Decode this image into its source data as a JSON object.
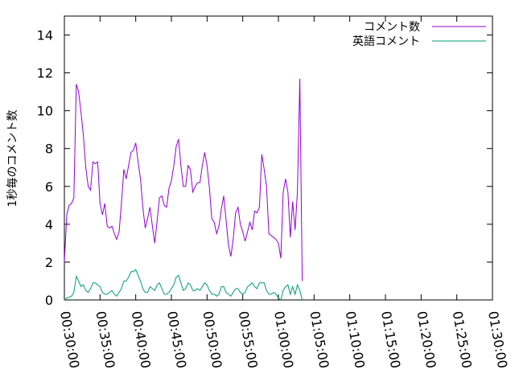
{
  "chart_data": {
    "type": "line",
    "title": "",
    "xlabel": "",
    "ylabel": "1秒毎のコメント数",
    "xlim": [
      1800,
      5400
    ],
    "ylim": [
      0,
      15
    ],
    "xticks": [
      {
        "value": 1800,
        "label": "00:30:00"
      },
      {
        "value": 2100,
        "label": "00:35:00"
      },
      {
        "value": 2400,
        "label": "00:40:00"
      },
      {
        "value": 2700,
        "label": "00:45:00"
      },
      {
        "value": 3000,
        "label": "00:50:00"
      },
      {
        "value": 3300,
        "label": "00:55:00"
      },
      {
        "value": 3600,
        "label": "01:00:00"
      },
      {
        "value": 3900,
        "label": "01:05:00"
      },
      {
        "value": 4200,
        "label": "01:10:00"
      },
      {
        "value": 4500,
        "label": "01:15:00"
      },
      {
        "value": 4800,
        "label": "01:20:00"
      },
      {
        "value": 5100,
        "label": "01:25:00"
      },
      {
        "value": 5400,
        "label": "01:30:00"
      }
    ],
    "yticks": [
      {
        "value": 0,
        "label": "0"
      },
      {
        "value": 2,
        "label": "2"
      },
      {
        "value": 4,
        "label": "4"
      },
      {
        "value": 6,
        "label": "6"
      },
      {
        "value": 8,
        "label": "8"
      },
      {
        "value": 10,
        "label": "10"
      },
      {
        "value": 12,
        "label": "12"
      },
      {
        "value": 14,
        "label": "14"
      }
    ],
    "grid": false,
    "legend_position": "top-right",
    "series": [
      {
        "name": "コメント数",
        "color": "#9400d3",
        "points": [
          [
            1800,
            2.0
          ],
          [
            1820,
            4.5
          ],
          [
            1840,
            5.0
          ],
          [
            1860,
            5.1
          ],
          [
            1880,
            5.4
          ],
          [
            1900,
            11.4
          ],
          [
            1920,
            11.0
          ],
          [
            1940,
            9.9
          ],
          [
            1960,
            8.7
          ],
          [
            1980,
            7.0
          ],
          [
            2000,
            6.0
          ],
          [
            2020,
            5.8
          ],
          [
            2040,
            7.3
          ],
          [
            2060,
            7.2
          ],
          [
            2080,
            7.3
          ],
          [
            2100,
            5.1
          ],
          [
            2120,
            4.5
          ],
          [
            2140,
            5.1
          ],
          [
            2160,
            3.9
          ],
          [
            2180,
            3.8
          ],
          [
            2200,
            3.9
          ],
          [
            2220,
            3.5
          ],
          [
            2240,
            3.2
          ],
          [
            2260,
            3.6
          ],
          [
            2280,
            5.1
          ],
          [
            2300,
            6.9
          ],
          [
            2320,
            6.4
          ],
          [
            2340,
            7.1
          ],
          [
            2360,
            7.8
          ],
          [
            2380,
            7.9
          ],
          [
            2400,
            8.3
          ],
          [
            2420,
            7.3
          ],
          [
            2440,
            6.4
          ],
          [
            2460,
            4.9
          ],
          [
            2480,
            3.8
          ],
          [
            2500,
            4.3
          ],
          [
            2520,
            4.9
          ],
          [
            2540,
            3.9
          ],
          [
            2560,
            3.0
          ],
          [
            2580,
            4.2
          ],
          [
            2600,
            5.4
          ],
          [
            2620,
            5.5
          ],
          [
            2640,
            5.0
          ],
          [
            2660,
            4.9
          ],
          [
            2680,
            5.9
          ],
          [
            2700,
            6.3
          ],
          [
            2720,
            7.1
          ],
          [
            2740,
            8.1
          ],
          [
            2760,
            8.5
          ],
          [
            2780,
            7.1
          ],
          [
            2800,
            6.0
          ],
          [
            2820,
            6.0
          ],
          [
            2840,
            7.1
          ],
          [
            2860,
            6.9
          ],
          [
            2880,
            5.7
          ],
          [
            2900,
            6.0
          ],
          [
            2920,
            6.2
          ],
          [
            2940,
            6.2
          ],
          [
            2960,
            7.1
          ],
          [
            2980,
            7.8
          ],
          [
            3000,
            7.1
          ],
          [
            3020,
            5.9
          ],
          [
            3040,
            4.3
          ],
          [
            3060,
            4.1
          ],
          [
            3080,
            3.5
          ],
          [
            3100,
            3.9
          ],
          [
            3120,
            4.8
          ],
          [
            3140,
            5.5
          ],
          [
            3160,
            4.2
          ],
          [
            3180,
            2.9
          ],
          [
            3200,
            2.3
          ],
          [
            3220,
            3.2
          ],
          [
            3240,
            4.6
          ],
          [
            3260,
            4.9
          ],
          [
            3280,
            4.0
          ],
          [
            3300,
            3.6
          ],
          [
            3320,
            3.1
          ],
          [
            3340,
            3.6
          ],
          [
            3360,
            4.1
          ],
          [
            3380,
            3.7
          ],
          [
            3400,
            4.7
          ],
          [
            3420,
            4.6
          ],
          [
            3440,
            4.9
          ],
          [
            3460,
            7.7
          ],
          [
            3480,
            6.9
          ],
          [
            3500,
            6.0
          ],
          [
            3520,
            3.5
          ],
          [
            3540,
            3.4
          ],
          [
            3560,
            3.3
          ],
          [
            3580,
            3.2
          ],
          [
            3600,
            3.0
          ],
          [
            3620,
            2.2
          ],
          [
            3640,
            5.7
          ],
          [
            3660,
            6.4
          ],
          [
            3680,
            5.7
          ],
          [
            3700,
            3.3
          ],
          [
            3720,
            5.2
          ],
          [
            3740,
            3.7
          ],
          [
            3760,
            5.7
          ],
          [
            3780,
            11.7
          ],
          [
            3800,
            1.0
          ]
        ]
      },
      {
        "name": "英語コメント",
        "color": "#009e73",
        "points": [
          [
            1800,
            0.0
          ],
          [
            1820,
            0.1
          ],
          [
            1840,
            0.15
          ],
          [
            1860,
            0.2
          ],
          [
            1880,
            0.4
          ],
          [
            1900,
            1.25
          ],
          [
            1920,
            1.0
          ],
          [
            1940,
            0.7
          ],
          [
            1960,
            0.8
          ],
          [
            1980,
            0.5
          ],
          [
            2000,
            0.4
          ],
          [
            2020,
            0.6
          ],
          [
            2040,
            0.9
          ],
          [
            2060,
            0.9
          ],
          [
            2080,
            0.8
          ],
          [
            2100,
            0.7
          ],
          [
            2120,
            0.4
          ],
          [
            2140,
            0.3
          ],
          [
            2160,
            0.3
          ],
          [
            2180,
            0.4
          ],
          [
            2200,
            0.5
          ],
          [
            2220,
            0.3
          ],
          [
            2240,
            0.2
          ],
          [
            2260,
            0.4
          ],
          [
            2280,
            0.6
          ],
          [
            2300,
            1.0
          ],
          [
            2320,
            1.0
          ],
          [
            2340,
            1.2
          ],
          [
            2360,
            1.5
          ],
          [
            2380,
            1.5
          ],
          [
            2400,
            1.6
          ],
          [
            2420,
            1.3
          ],
          [
            2440,
            1.0
          ],
          [
            2460,
            0.6
          ],
          [
            2480,
            0.4
          ],
          [
            2500,
            0.4
          ],
          [
            2520,
            0.7
          ],
          [
            2540,
            0.6
          ],
          [
            2560,
            0.5
          ],
          [
            2580,
            0.8
          ],
          [
            2600,
            0.9
          ],
          [
            2620,
            0.6
          ],
          [
            2640,
            0.3
          ],
          [
            2660,
            0.3
          ],
          [
            2680,
            0.4
          ],
          [
            2700,
            0.6
          ],
          [
            2720,
            0.8
          ],
          [
            2740,
            1.2
          ],
          [
            2760,
            1.3
          ],
          [
            2780,
            0.9
          ],
          [
            2800,
            0.5
          ],
          [
            2820,
            0.6
          ],
          [
            2840,
            0.9
          ],
          [
            2860,
            0.8
          ],
          [
            2880,
            0.5
          ],
          [
            2900,
            0.5
          ],
          [
            2920,
            0.6
          ],
          [
            2940,
            0.5
          ],
          [
            2960,
            0.7
          ],
          [
            2980,
            0.9
          ],
          [
            3000,
            0.8
          ],
          [
            3020,
            0.5
          ],
          [
            3040,
            0.3
          ],
          [
            3060,
            0.3
          ],
          [
            3080,
            0.2
          ],
          [
            3100,
            0.3
          ],
          [
            3120,
            0.7
          ],
          [
            3140,
            0.7
          ],
          [
            3160,
            0.4
          ],
          [
            3180,
            0.3
          ],
          [
            3200,
            0.2
          ],
          [
            3220,
            0.4
          ],
          [
            3240,
            0.6
          ],
          [
            3260,
            0.6
          ],
          [
            3280,
            0.4
          ],
          [
            3300,
            0.3
          ],
          [
            3320,
            0.4
          ],
          [
            3340,
            0.7
          ],
          [
            3360,
            0.8
          ],
          [
            3380,
            0.9
          ],
          [
            3400,
            0.7
          ],
          [
            3420,
            0.6
          ],
          [
            3440,
            0.9
          ],
          [
            3460,
            0.9
          ],
          [
            3480,
            0.9
          ],
          [
            3500,
            0.5
          ],
          [
            3520,
            0.3
          ],
          [
            3540,
            0.3
          ],
          [
            3560,
            0.4
          ],
          [
            3580,
            0.3
          ],
          [
            3600,
            0.1
          ],
          [
            3620,
            0.0
          ],
          [
            3640,
            0.5
          ],
          [
            3660,
            0.7
          ],
          [
            3680,
            0.8
          ],
          [
            3700,
            0.3
          ],
          [
            3720,
            0.7
          ],
          [
            3740,
            0.3
          ],
          [
            3760,
            0.8
          ],
          [
            3780,
            0.5
          ],
          [
            3800,
            0.0
          ]
        ]
      }
    ]
  }
}
